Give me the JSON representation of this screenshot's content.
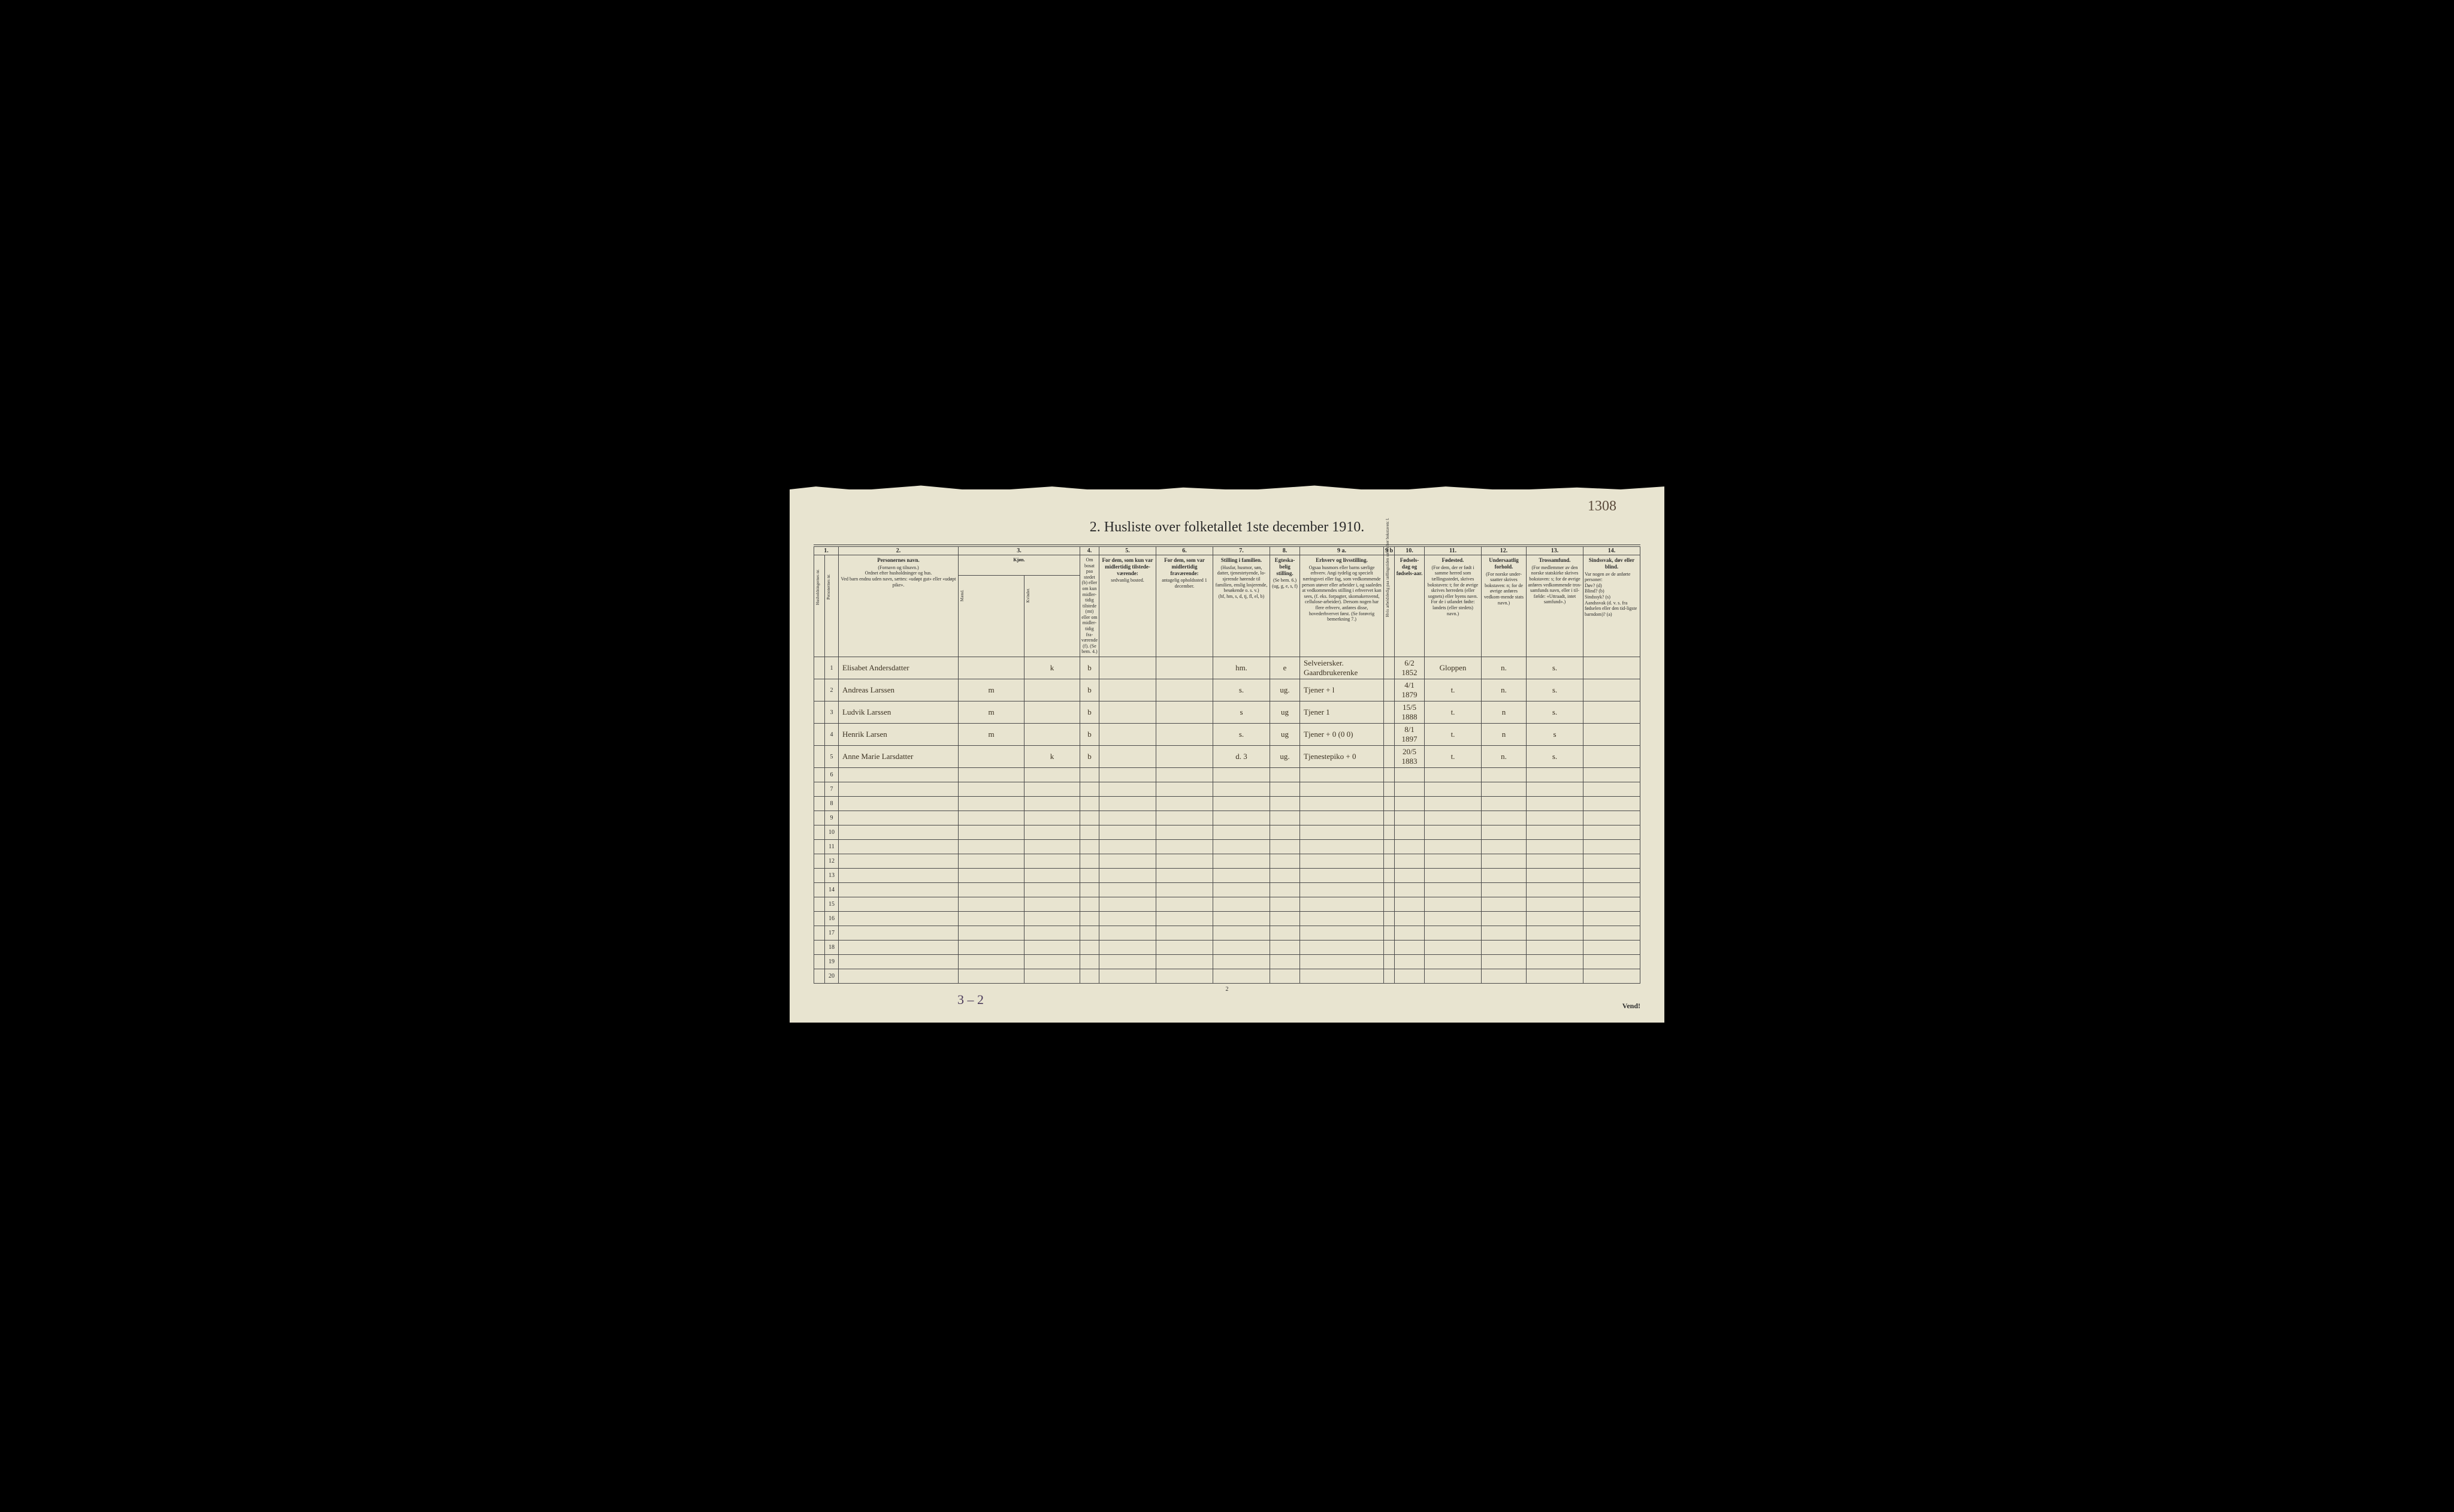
{
  "handwritten_page_number": "1308",
  "title": "2.  Husliste over folketallet 1ste december 1910.",
  "bottom_page_number": "2",
  "vend_label": "Vend!",
  "footer_annotation": "3 – 2",
  "column_numbers": [
    "1.",
    "",
    "2.",
    "3.",
    "",
    "4.",
    "5.",
    "6.",
    "7.",
    "8.",
    "9 a.",
    "9 b",
    "10.",
    "11.",
    "12.",
    "13.",
    "14."
  ],
  "headers": {
    "col1": "Husholdningernes nr.",
    "col1b": "Personernes nr.",
    "col2_title": "Personernes navn.",
    "col2_sub": "(Fornavn og tilnavn.)\nOrdnet efter husholdninger og hus.\nVed barn endnu uden navn, sættes: «udøpt gut» eller «udøpt pike».",
    "col3_title": "Kjøn.",
    "col3_m": "Mænd.",
    "col3_k": "Kvinder.",
    "col3_mk": "m.  k.",
    "col4": "Om bosat paa stedet (b) eller om kun midler-tidig tilstede (mt) eller om midler-tidig fra-værende (f). (Se bem. 4.)",
    "col5_title": "For dem, som kun var midlertidig tilstede-værende:",
    "col5_sub": "sedvanlig bosted.",
    "col6_title": "For dem, som var midlertidig fraværende:",
    "col6_sub": "antagelig opholdssted 1 december.",
    "col7_title": "Stilling i familien.",
    "col7_sub": "(Husfar, husmor, søn, datter, tjenestetyende, lo-sjerende hørende til familien, enslig losjerende, besøkende o. s. v.)\n(hf, hm, s, d, tj, fl, el, b)",
    "col8_title": "Egteska-belig stilling.",
    "col8_sub": "(Se bem. 6.)\n(ug, g, e, s, f)",
    "col9a_title": "Erhverv og livsstilling.",
    "col9a_sub": "Ogsaa husmors eller barns særlige erhverv. Angi tydelig og specielt næringsvei eller fag, som vedkommende person utøver eller arbeider i, og saaledes at vedkommendes stilling i erhvervet kan sees, (f. eks. forpagter, skomakersvend, cellulose-arbeider). Dersom nogen har flere erhverv, anføres disse, hovederhvervet først. (Se forøvrig bemerkning 7.)",
    "col9b": "Hvis arbeidsledig paa tællingstiden sættes her bokstaven: l.",
    "col10_title": "Fødsels-dag og fødsels-aar.",
    "col11_title": "Fødested.",
    "col11_sub": "(For dem, der er født i samme herred som tællingsstedet, skrives bokstaven: t; for de øvrige skrives herredets (eller sognets) eller byens navn. For de i utlandet fødte: landets (eller stedets) navn.)",
    "col12_title": "Undersaatlig forhold.",
    "col12_sub": "(For norske under-saatter skrives bokstaven: n; for de øvrige anføres vedkom-mende stats navn.)",
    "col13_title": "Trossamfund.",
    "col13_sub": "(For medlemmer av den norske statskirke skrives bokstaven: s; for de øvrige anføres vedkommende tros-samfunds navn, eller i til-fælde: «Uttraadt, intet samfund».)",
    "col14_title": "Sindssvak, døv eller blind.",
    "col14_sub": "Var nogen av de anførte personer:\nDøv?        (d)\nBlind?       (b)\nSindssyk? (s)\nAandssvak (d. v. s. fra fødselen eller den tid-ligste barndom)? (a)"
  },
  "rows": [
    {
      "n": "1",
      "name": "Elisabet Andersdatter",
      "mk": "k",
      "b": "b",
      "c5": "",
      "c6": "",
      "fam": "hm.",
      "eg": "e",
      "erhverv": "Selveiersker.\nGaardbrukerenke",
      "l": "",
      "dob": "6/2 1852",
      "fst": "Gloppen",
      "us": "n.",
      "ts": "s.",
      "c14": ""
    },
    {
      "n": "2",
      "name": "Andreas Larssen",
      "mk": "m",
      "b": "b",
      "c5": "",
      "c6": "",
      "fam": "s.",
      "eg": "ug.",
      "erhverv": "Tjener    + l",
      "l": "",
      "dob": "4/1 1879",
      "fst": "t.",
      "us": "n.",
      "ts": "s.",
      "c14": ""
    },
    {
      "n": "3",
      "name": "Ludvik Larssen",
      "mk": "m",
      "b": "b",
      "c5": "",
      "c6": "",
      "fam": "s",
      "eg": "ug",
      "erhverv": "Tjener     1",
      "l": "",
      "dob": "15/5 1888",
      "fst": "t.",
      "us": "n",
      "ts": "s.",
      "c14": ""
    },
    {
      "n": "4",
      "name": "Henrik Larsen",
      "mk": "m",
      "b": "b",
      "c5": "",
      "c6": "",
      "fam": "s.",
      "eg": "ug",
      "erhverv": "Tjener  + 0 (0 0)",
      "l": "",
      "dob": "8/1 1897",
      "fst": "t.",
      "us": "n",
      "ts": "s",
      "c14": ""
    },
    {
      "n": "5",
      "name": "Anne Marie Larsdatter",
      "mk": "k",
      "b": "b",
      "c5": "",
      "c6": "",
      "fam": "d.     3",
      "eg": "ug.",
      "erhverv": "Tjenestepiko + 0",
      "l": "",
      "dob": "20/5 1883",
      "fst": "t.",
      "us": "n.",
      "ts": "s.",
      "c14": ""
    },
    {
      "n": "6"
    },
    {
      "n": "7"
    },
    {
      "n": "8"
    },
    {
      "n": "9"
    },
    {
      "n": "10"
    },
    {
      "n": "11"
    },
    {
      "n": "12"
    },
    {
      "n": "13"
    },
    {
      "n": "14"
    },
    {
      "n": "15"
    },
    {
      "n": "16"
    },
    {
      "n": "17"
    },
    {
      "n": "18"
    },
    {
      "n": "19"
    },
    {
      "n": "20"
    }
  ],
  "colors": {
    "paper": "#e8e4d0",
    "ink_print": "#2a2a2a",
    "ink_handwriting": "#3a3020",
    "border": "#4a4a4a",
    "background": "#000000"
  }
}
